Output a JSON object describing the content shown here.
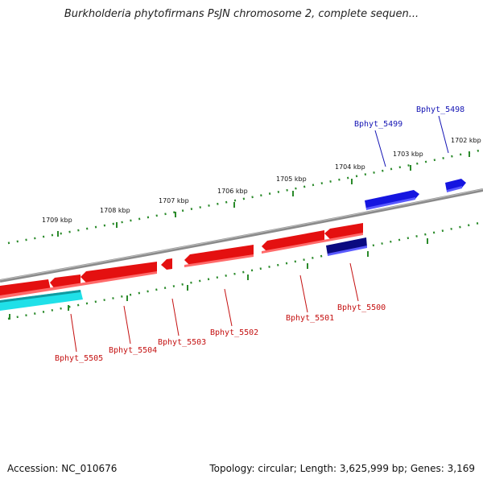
{
  "header": {
    "title": "Burkholderia phytofirmans PsJN chromosome 2, complete sequen..."
  },
  "footer": {
    "accession": "Accession: NC_010676",
    "topology": "Topology: circular; Length: 3,625,999 bp; Genes: 3,169"
  },
  "colors": {
    "backbone": "#8a8a8a",
    "tick": "#2a8a2a",
    "forward_gene": "#1515e0",
    "forward_gene_dark": "#0a0a80",
    "reverse_gene": "#e41010",
    "rna_gene": "#20e0e8",
    "forward_label": "#1414b4",
    "reverse_label": "#c41010"
  },
  "scale": {
    "ticks": [
      {
        "label": "1709 kbp"
      },
      {
        "label": "1708 kbp"
      },
      {
        "label": "1707 kbp"
      },
      {
        "label": "1706 kbp"
      },
      {
        "label": "1705 kbp"
      },
      {
        "label": "1704 kbp"
      },
      {
        "label": "1703 kbp"
      },
      {
        "label": "1702 kbp"
      }
    ]
  },
  "genes": {
    "forward": [
      {
        "label": "Bphyt_5499"
      },
      {
        "label": "Bphyt_5498"
      }
    ],
    "reverse": [
      {
        "label": "Bphyt_5505"
      },
      {
        "label": "Bphyt_5504"
      },
      {
        "label": "Bphyt_5503"
      },
      {
        "label": "Bphyt_5502"
      },
      {
        "label": "Bphyt_5501"
      },
      {
        "label": "Bphyt_5500"
      }
    ]
  }
}
